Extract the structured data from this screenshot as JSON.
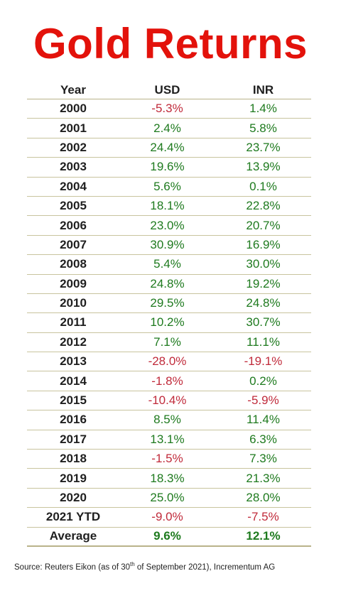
{
  "title": "Gold Returns",
  "table": {
    "headers": {
      "year": "Year",
      "usd": "USD",
      "inr": "INR"
    },
    "rows": [
      {
        "year": "2000",
        "usd": "-5.3%",
        "inr": "1.4%"
      },
      {
        "year": "2001",
        "usd": "2.4%",
        "inr": "5.8%"
      },
      {
        "year": "2002",
        "usd": "24.4%",
        "inr": "23.7%"
      },
      {
        "year": "2003",
        "usd": "19.6%",
        "inr": "13.9%"
      },
      {
        "year": "2004",
        "usd": "5.6%",
        "inr": "0.1%"
      },
      {
        "year": "2005",
        "usd": "18.1%",
        "inr": "22.8%"
      },
      {
        "year": "2006",
        "usd": "23.0%",
        "inr": "20.7%"
      },
      {
        "year": "2007",
        "usd": "30.9%",
        "inr": "16.9%"
      },
      {
        "year": "2008",
        "usd": "5.4%",
        "inr": "30.0%"
      },
      {
        "year": "2009",
        "usd": "24.8%",
        "inr": "19.2%"
      },
      {
        "year": "2010",
        "usd": "29.5%",
        "inr": "24.8%"
      },
      {
        "year": "2011",
        "usd": "10.2%",
        "inr": "30.7%"
      },
      {
        "year": "2012",
        "usd": "7.1%",
        "inr": "11.1%"
      },
      {
        "year": "2013",
        "usd": "-28.0%",
        "inr": "-19.1%"
      },
      {
        "year": "2014",
        "usd": "-1.8%",
        "inr": "0.2%"
      },
      {
        "year": "2015",
        "usd": "-10.4%",
        "inr": "-5.9%"
      },
      {
        "year": "2016",
        "usd": "8.5%",
        "inr": "11.4%"
      },
      {
        "year": "2017",
        "usd": "13.1%",
        "inr": "6.3%"
      },
      {
        "year": "2018",
        "usd": "-1.5%",
        "inr": "7.3%"
      },
      {
        "year": "2019",
        "usd": "18.3%",
        "inr": "21.3%"
      },
      {
        "year": "2020",
        "usd": "25.0%",
        "inr": "28.0%"
      },
      {
        "year": "2021 YTD",
        "usd": "-9.0%",
        "inr": "-7.5%"
      }
    ],
    "average": {
      "label": "Average",
      "usd": "9.6%",
      "inr": "12.1%"
    }
  },
  "source": {
    "prefix": "Source: Reuters Eikon (as of 30",
    "superscript": "th",
    "suffix": " of September 2021), Incrementum AG"
  },
  "colors": {
    "title": "#e3120b",
    "positive": "#1e7a1e",
    "negative": "#c02a3a",
    "rule": "#c8c49e"
  }
}
